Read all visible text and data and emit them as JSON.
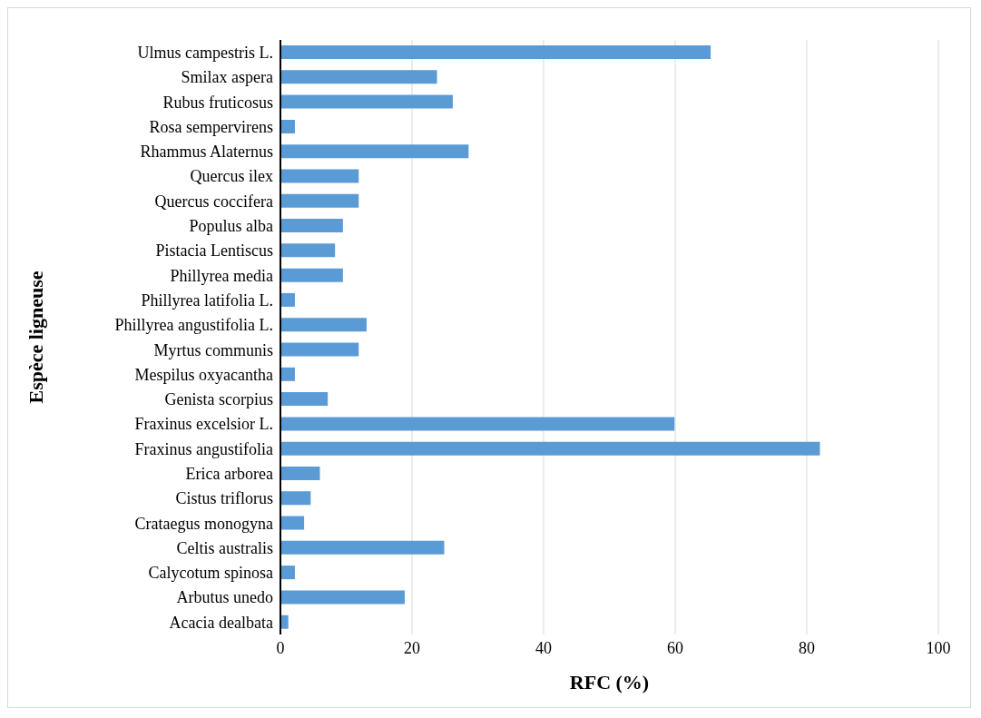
{
  "chart_data": {
    "type": "bar",
    "orientation": "horizontal",
    "xlabel": "RFC (%)",
    "ylabel": "Espèce ligneuse",
    "categories": [
      "Ulmus campestris L.",
      "Smilax aspera",
      "Rubus fruticosus",
      "Rosa sempervirens",
      "Rhammus Alaternus",
      "Quercus ilex",
      "Quercus coccifera",
      "Populus alba",
      "Pistacia Lentiscus",
      "Phillyrea media",
      "Phillyrea latifolia L.",
      "Phillyrea angustifolia L.",
      "Myrtus communis",
      "Mespilus oxyacantha",
      "Genista scorpius",
      "Fraxinus excelsior L.",
      "Fraxinus angustifolia",
      "Erica arborea",
      "Cistus triflorus",
      "Crataegus monogyna",
      "Celtis australis",
      "Calycotum spinosa",
      "Arbutus unedo",
      "Acacia dealbata"
    ],
    "values": [
      65.4,
      23.8,
      26.2,
      2.2,
      28.6,
      11.9,
      11.9,
      9.5,
      8.3,
      9.5,
      2.2,
      13.1,
      11.9,
      2.2,
      7.2,
      59.9,
      82,
      6,
      4.6,
      3.6,
      24.9,
      2.2,
      18.9,
      1.2
    ],
    "color": "#5b9bd5",
    "xlim": [
      0,
      100
    ],
    "xticks": [
      0,
      20,
      40,
      60,
      80,
      100
    ],
    "grid": "x"
  }
}
